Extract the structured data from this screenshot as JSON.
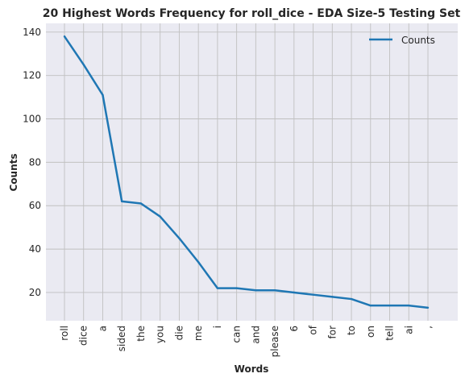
{
  "chart_data": {
    "type": "line",
    "title": "20 Highest Words Frequency for roll_dice - EDA Size-5 Testing Set",
    "xlabel": "Words",
    "ylabel": "Counts",
    "categories": [
      "roll",
      "dice",
      "a",
      "sided",
      "the",
      "you",
      "die",
      "me",
      "i",
      "can",
      "and",
      "please",
      "6",
      "of",
      "for",
      "to",
      "on",
      "tell",
      "ai",
      ","
    ],
    "series": [
      {
        "name": "Counts",
        "values": [
          138,
          125,
          111,
          62,
          61,
          55,
          45,
          34,
          22,
          22,
          21,
          21,
          20,
          19,
          18,
          17,
          14,
          14,
          14,
          13
        ]
      }
    ],
    "ylim": [
      7,
      144
    ],
    "yticks": [
      20,
      40,
      60,
      80,
      100,
      120,
      140
    ],
    "grid": true,
    "legend_position": "top-right",
    "colors": {
      "line": "#1f77b4",
      "plot_background": "#eaeaf2",
      "grid": "#c0c0c0",
      "text": "#262626"
    }
  }
}
